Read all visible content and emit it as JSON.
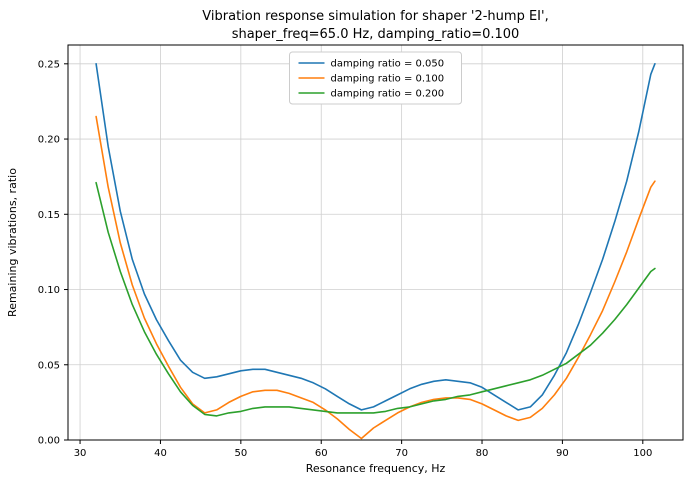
{
  "chart_data": {
    "type": "line",
    "title": "Vibration response simulation for shaper '2-hump EI',\nshaper_freq=65.0 Hz, damping_ratio=0.100",
    "xlabel": "Resonance frequency, Hz",
    "ylabel": "Remaining vibrations, ratio",
    "xlim": [
      28.5,
      105
    ],
    "ylim": [
      0,
      0.2625
    ],
    "xticks": [
      30,
      40,
      50,
      60,
      70,
      80,
      90,
      100
    ],
    "yticks": [
      0,
      0.05,
      0.1,
      0.15,
      0.2,
      0.25
    ],
    "grid": true,
    "grid_color": "#cfcfcf",
    "legend_position": "upper center",
    "x": [
      32,
      33.5,
      35,
      36.5,
      38,
      39.5,
      41,
      42.5,
      44,
      45.5,
      47,
      48.5,
      50,
      51.5,
      53,
      54.5,
      56,
      57.5,
      59,
      60.5,
      62,
      63.5,
      65,
      66.5,
      68,
      69.5,
      71,
      72.5,
      74,
      75.5,
      77,
      78.5,
      80,
      81.5,
      83,
      84.5,
      86,
      87.5,
      89,
      90.5,
      92,
      93.5,
      95,
      96.5,
      98,
      99.5,
      101,
      101.5
    ],
    "series": [
      {
        "name": "damping ratio = 0.050",
        "color": "#1f77b4",
        "values": [
          0.25,
          0.195,
          0.152,
          0.12,
          0.097,
          0.08,
          0.066,
          0.053,
          0.045,
          0.041,
          0.042,
          0.044,
          0.046,
          0.047,
          0.047,
          0.045,
          0.043,
          0.041,
          0.038,
          0.034,
          0.029,
          0.024,
          0.02,
          0.022,
          0.026,
          0.03,
          0.034,
          0.037,
          0.039,
          0.04,
          0.039,
          0.038,
          0.035,
          0.03,
          0.025,
          0.02,
          0.022,
          0.03,
          0.043,
          0.058,
          0.077,
          0.098,
          0.12,
          0.145,
          0.172,
          0.205,
          0.243,
          0.25
        ]
      },
      {
        "name": "damping ratio = 0.100",
        "color": "#ff7f0e",
        "values": [
          0.215,
          0.168,
          0.131,
          0.103,
          0.081,
          0.064,
          0.049,
          0.035,
          0.024,
          0.018,
          0.02,
          0.025,
          0.029,
          0.032,
          0.033,
          0.033,
          0.031,
          0.028,
          0.025,
          0.02,
          0.014,
          0.007,
          0.001,
          0.008,
          0.013,
          0.018,
          0.022,
          0.025,
          0.027,
          0.028,
          0.028,
          0.027,
          0.024,
          0.02,
          0.016,
          0.013,
          0.015,
          0.021,
          0.03,
          0.041,
          0.055,
          0.07,
          0.086,
          0.105,
          0.125,
          0.147,
          0.168,
          0.172
        ]
      },
      {
        "name": "damping ratio = 0.200",
        "color": "#2ca02c",
        "values": [
          0.171,
          0.138,
          0.112,
          0.09,
          0.072,
          0.057,
          0.044,
          0.032,
          0.023,
          0.017,
          0.016,
          0.018,
          0.019,
          0.021,
          0.022,
          0.022,
          0.022,
          0.021,
          0.02,
          0.019,
          0.018,
          0.018,
          0.018,
          0.018,
          0.019,
          0.021,
          0.022,
          0.024,
          0.026,
          0.027,
          0.029,
          0.03,
          0.032,
          0.034,
          0.036,
          0.038,
          0.04,
          0.043,
          0.047,
          0.051,
          0.057,
          0.063,
          0.071,
          0.08,
          0.09,
          0.101,
          0.112,
          0.114
        ]
      }
    ]
  }
}
